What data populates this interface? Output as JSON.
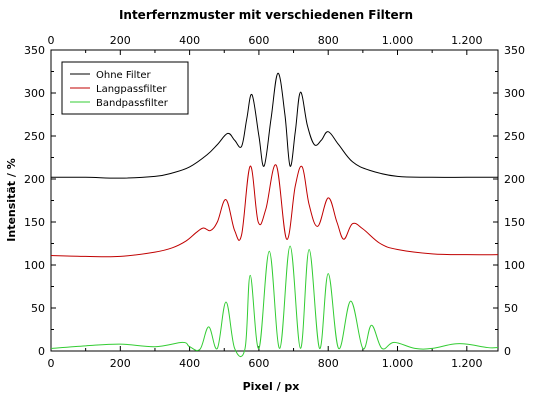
{
  "chart_data": {
    "type": "line",
    "title": "Interfernzmuster mit verschiedenen Filtern",
    "xlabel": "Pixel / px",
    "ylabel": "Intensität / %",
    "xlim": [
      0,
      1290
    ],
    "ylim": [
      0,
      350
    ],
    "x_ticks": [
      0,
      200,
      400,
      600,
      800,
      1000,
      1200
    ],
    "x_tick_labels": [
      "0",
      "200",
      "400",
      "600",
      "800",
      "1.000",
      "1.200"
    ],
    "y_ticks": [
      0,
      50,
      100,
      150,
      200,
      250,
      300,
      350
    ],
    "y_tick_labels": [
      "0",
      "50",
      "100",
      "150",
      "200",
      "250",
      "300",
      "350"
    ],
    "grid": false,
    "legend_position": "top-left",
    "series": [
      {
        "name": "Ohne Filter",
        "color": "#000000",
        "x": [
          0,
          100,
          200,
          300,
          350,
          400,
          450,
          480,
          510,
          530,
          550,
          565,
          580,
          600,
          615,
          635,
          655,
          675,
          690,
          705,
          720,
          740,
          760,
          780,
          800,
          830,
          870,
          920,
          1000,
          1100,
          1200,
          1290
        ],
        "values": [
          202,
          202,
          201,
          203,
          207,
          214,
          228,
          240,
          253,
          245,
          238,
          270,
          298,
          250,
          215,
          270,
          323,
          275,
          215,
          255,
          301,
          262,
          240,
          245,
          255,
          240,
          220,
          210,
          203,
          202,
          202,
          202
        ]
      },
      {
        "name": "Langpassfilter",
        "color": "#c00000",
        "x": [
          0,
          100,
          200,
          300,
          350,
          390,
          420,
          440,
          460,
          480,
          505,
          530,
          550,
          575,
          598,
          620,
          650,
          680,
          705,
          725,
          745,
          770,
          800,
          825,
          845,
          870,
          900,
          950,
          1000,
          1100,
          1200,
          1290
        ],
        "values": [
          111,
          110,
          110,
          115,
          120,
          128,
          138,
          143,
          140,
          150,
          176,
          140,
          135,
          215,
          150,
          165,
          216,
          130,
          192,
          214,
          170,
          145,
          178,
          150,
          130,
          148,
          142,
          125,
          118,
          113,
          112,
          112
        ]
      },
      {
        "name": "Bandpassfilter",
        "color": "#33cc33",
        "x": [
          0,
          100,
          200,
          300,
          380,
          400,
          430,
          455,
          480,
          505,
          530,
          560,
          575,
          600,
          630,
          660,
          690,
          720,
          745,
          775,
          800,
          830,
          865,
          900,
          925,
          955,
          990,
          1050,
          1100,
          1160,
          1200,
          1260,
          1290
        ],
        "values": [
          3,
          6,
          8,
          5,
          10,
          5,
          2,
          28,
          3,
          57,
          3,
          3,
          88,
          3,
          116,
          3,
          122,
          3,
          118,
          3,
          90,
          3,
          58,
          3,
          30,
          3,
          10,
          3,
          3,
          8,
          8,
          4,
          4
        ]
      }
    ]
  }
}
